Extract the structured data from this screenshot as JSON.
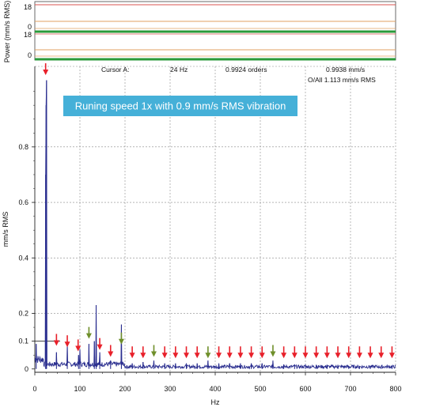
{
  "colors": {
    "spectrum": "#2a2e8f",
    "arrow": "#e8202a",
    "arrow_alt": "#6f8f2a",
    "callout_bg": "#45b0d8",
    "grid": "#8a8a8a",
    "top_red": "#d9534f",
    "top_orange": "#e0a060",
    "top_green": "#2a9a3a"
  },
  "top_panel": {
    "ylabel": "Power (mm/s RMS)",
    "tick_labels": [
      "18",
      "0",
      "18",
      "0"
    ]
  },
  "cursor_info": {
    "label": "Cursor A:",
    "freq": "24 Hz",
    "orders": "0.9924 orders",
    "amplitude": "0.9938 mm/s",
    "overall": "O/All 1.113 mm/s RMS"
  },
  "callout": {
    "text": "Runing speed 1x with 0.9 mm/s RMS vibration"
  },
  "chart_data": {
    "type": "line",
    "xlabel": "Hz",
    "ylabel": "mm/s RMS",
    "xlim": [
      0,
      800
    ],
    "ylim": [
      -0.012,
      1.09
    ],
    "xticks": [
      0,
      100,
      200,
      300,
      400,
      500,
      600,
      700,
      800
    ],
    "yticks": [
      0,
      0.2,
      0.4,
      0.6,
      0.8
    ],
    "ytick_labels": [
      "0",
      "0.2",
      "0.4",
      "0.6",
      "0.8"
    ],
    "extra_ytick": {
      "value": 0.1,
      "label": "0.1"
    },
    "grid": true,
    "peaks": [
      {
        "x": 3,
        "y": 0.09
      },
      {
        "x": 24,
        "y": 0.7
      },
      {
        "x": 25,
        "y": 0.95
      },
      {
        "x": 26,
        "y": 1.04
      },
      {
        "x": 48,
        "y": 0.06
      },
      {
        "x": 72,
        "y": 0.09
      },
      {
        "x": 97,
        "y": 0.05
      },
      {
        "x": 100,
        "y": 0.07
      },
      {
        "x": 120,
        "y": 0.09
      },
      {
        "x": 132,
        "y": 0.1
      },
      {
        "x": 136,
        "y": 0.23
      },
      {
        "x": 144,
        "y": 0.06
      },
      {
        "x": 168,
        "y": 0.03
      },
      {
        "x": 192,
        "y": 0.16
      },
      {
        "x": 216,
        "y": 0.02
      },
      {
        "x": 240,
        "y": 0.025
      },
      {
        "x": 264,
        "y": 0.03
      },
      {
        "x": 288,
        "y": 0.02
      },
      {
        "x": 312,
        "y": 0.02
      },
      {
        "x": 336,
        "y": 0.02
      },
      {
        "x": 360,
        "y": 0.02
      },
      {
        "x": 384,
        "y": 0.03
      },
      {
        "x": 408,
        "y": 0.02
      },
      {
        "x": 432,
        "y": 0.02
      },
      {
        "x": 456,
        "y": 0.02
      },
      {
        "x": 480,
        "y": 0.02
      },
      {
        "x": 504,
        "y": 0.02
      },
      {
        "x": 528,
        "y": 0.03
      },
      {
        "x": 552,
        "y": 0.015
      },
      {
        "x": 576,
        "y": 0.015
      },
      {
        "x": 600,
        "y": 0.015
      },
      {
        "x": 624,
        "y": 0.015
      },
      {
        "x": 648,
        "y": 0.015
      },
      {
        "x": 672,
        "y": 0.015
      },
      {
        "x": 696,
        "y": 0.01
      },
      {
        "x": 720,
        "y": 0.01
      },
      {
        "x": 744,
        "y": 0.01
      },
      {
        "x": 768,
        "y": 0.01
      },
      {
        "x": 792,
        "y": 0.01
      }
    ],
    "harmonic_markers": [
      {
        "x": 24,
        "y": 1.05,
        "color": "arrow"
      },
      {
        "x": 48,
        "y": 0.075,
        "color": "arrow"
      },
      {
        "x": 72,
        "y": 0.07,
        "color": "arrow"
      },
      {
        "x": 96,
        "y": 0.055,
        "color": "arrow"
      },
      {
        "x": 120,
        "y": 0.1,
        "color": "arrow_alt"
      },
      {
        "x": 144,
        "y": 0.06,
        "color": "arrow"
      },
      {
        "x": 168,
        "y": 0.035,
        "color": "arrow"
      },
      {
        "x": 192,
        "y": 0.08,
        "color": "arrow_alt"
      },
      {
        "x": 216,
        "y": 0.03,
        "color": "arrow"
      },
      {
        "x": 240,
        "y": 0.03,
        "color": "arrow"
      },
      {
        "x": 264,
        "y": 0.035,
        "color": "arrow_alt"
      },
      {
        "x": 288,
        "y": 0.03,
        "color": "arrow"
      },
      {
        "x": 312,
        "y": 0.03,
        "color": "arrow"
      },
      {
        "x": 336,
        "y": 0.03,
        "color": "arrow"
      },
      {
        "x": 360,
        "y": 0.03,
        "color": "arrow"
      },
      {
        "x": 384,
        "y": 0.03,
        "color": "arrow_alt"
      },
      {
        "x": 408,
        "y": 0.03,
        "color": "arrow"
      },
      {
        "x": 432,
        "y": 0.03,
        "color": "arrow"
      },
      {
        "x": 456,
        "y": 0.03,
        "color": "arrow"
      },
      {
        "x": 480,
        "y": 0.03,
        "color": "arrow"
      },
      {
        "x": 504,
        "y": 0.03,
        "color": "arrow"
      },
      {
        "x": 528,
        "y": 0.035,
        "color": "arrow_alt"
      },
      {
        "x": 552,
        "y": 0.03,
        "color": "arrow"
      },
      {
        "x": 576,
        "y": 0.03,
        "color": "arrow"
      },
      {
        "x": 600,
        "y": 0.03,
        "color": "arrow"
      },
      {
        "x": 624,
        "y": 0.03,
        "color": "arrow"
      },
      {
        "x": 648,
        "y": 0.03,
        "color": "arrow"
      },
      {
        "x": 672,
        "y": 0.03,
        "color": "arrow"
      },
      {
        "x": 696,
        "y": 0.03,
        "color": "arrow"
      },
      {
        "x": 720,
        "y": 0.03,
        "color": "arrow"
      },
      {
        "x": 744,
        "y": 0.03,
        "color": "arrow"
      },
      {
        "x": 768,
        "y": 0.03,
        "color": "arrow"
      },
      {
        "x": 792,
        "y": 0.03,
        "color": "arrow"
      }
    ]
  }
}
